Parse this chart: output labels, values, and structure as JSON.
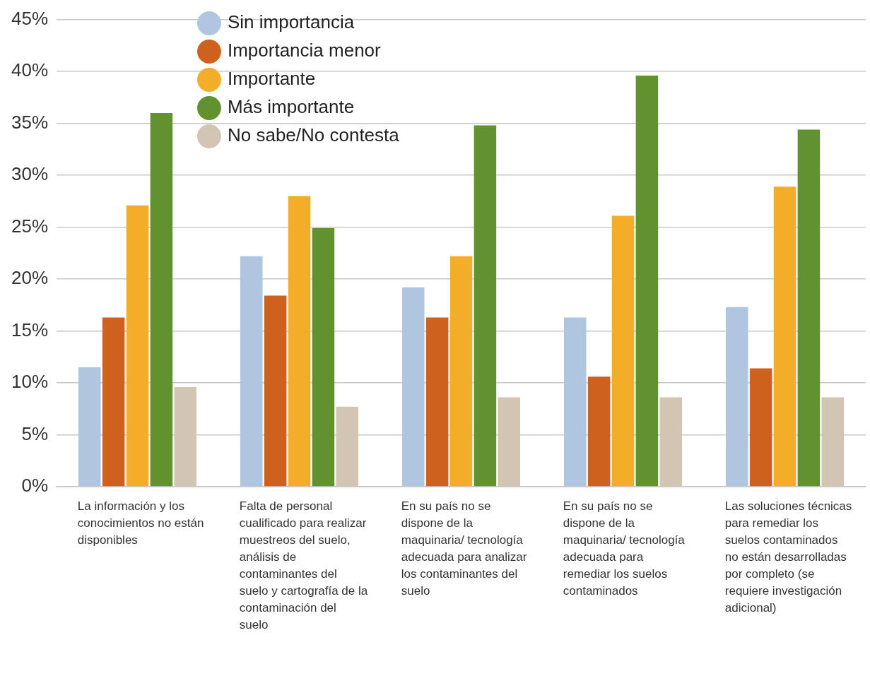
{
  "chart_data": {
    "type": "bar",
    "categories": [
      "La información y los conocimientos no están disponibles",
      "Falta de personal cualificado para realizar muestreos del suelo, análisis de contaminantes del suelo y cartografía de la contaminación del suelo",
      "En su país no se dispone de la maquinaria/ tecnología adecuada para analizar los contaminantes del suelo",
      "En su país no se dispone de la maquinaria/ tecnología adecuada para remediar los suelos contaminados",
      "Las soluciones técnicas para remediar los suelos contaminados no están desarrolladas por completo (se requiere investigación adicional)"
    ],
    "series": [
      {
        "name": "Sin importancia",
        "color": "#b0c5df",
        "values": [
          11.5,
          22.2,
          19.2,
          16.3,
          17.3
        ]
      },
      {
        "name": "Importancia menor",
        "color": "#cf611f",
        "values": [
          16.3,
          18.4,
          16.3,
          10.6,
          11.4
        ]
      },
      {
        "name": "Importante",
        "color": "#f3ad29",
        "values": [
          27.1,
          28.0,
          22.2,
          26.1,
          28.9
        ]
      },
      {
        "name": "Más importante",
        "color": "#629130",
        "values": [
          36.0,
          24.9,
          34.8,
          39.6,
          34.4
        ]
      },
      {
        "name": "No sabe/No contesta",
        "color": "#d3c5b4",
        "values": [
          9.6,
          7.7,
          8.6,
          8.6,
          8.6
        ]
      }
    ],
    "ylim": [
      0,
      45
    ],
    "yticks": [
      {
        "value": 0,
        "label": "0%"
      },
      {
        "value": 5,
        "label": "5%"
      },
      {
        "value": 10,
        "label": "10%"
      },
      {
        "value": 15,
        "label": "15%"
      },
      {
        "value": 20,
        "label": "20%"
      },
      {
        "value": 25,
        "label": "25%"
      },
      {
        "value": 30,
        "label": "30%"
      },
      {
        "value": 35,
        "label": "35%"
      },
      {
        "value": 40,
        "label": "40%"
      },
      {
        "value": 45,
        "label": "45%"
      }
    ],
    "grid": "y",
    "legend": "top"
  }
}
